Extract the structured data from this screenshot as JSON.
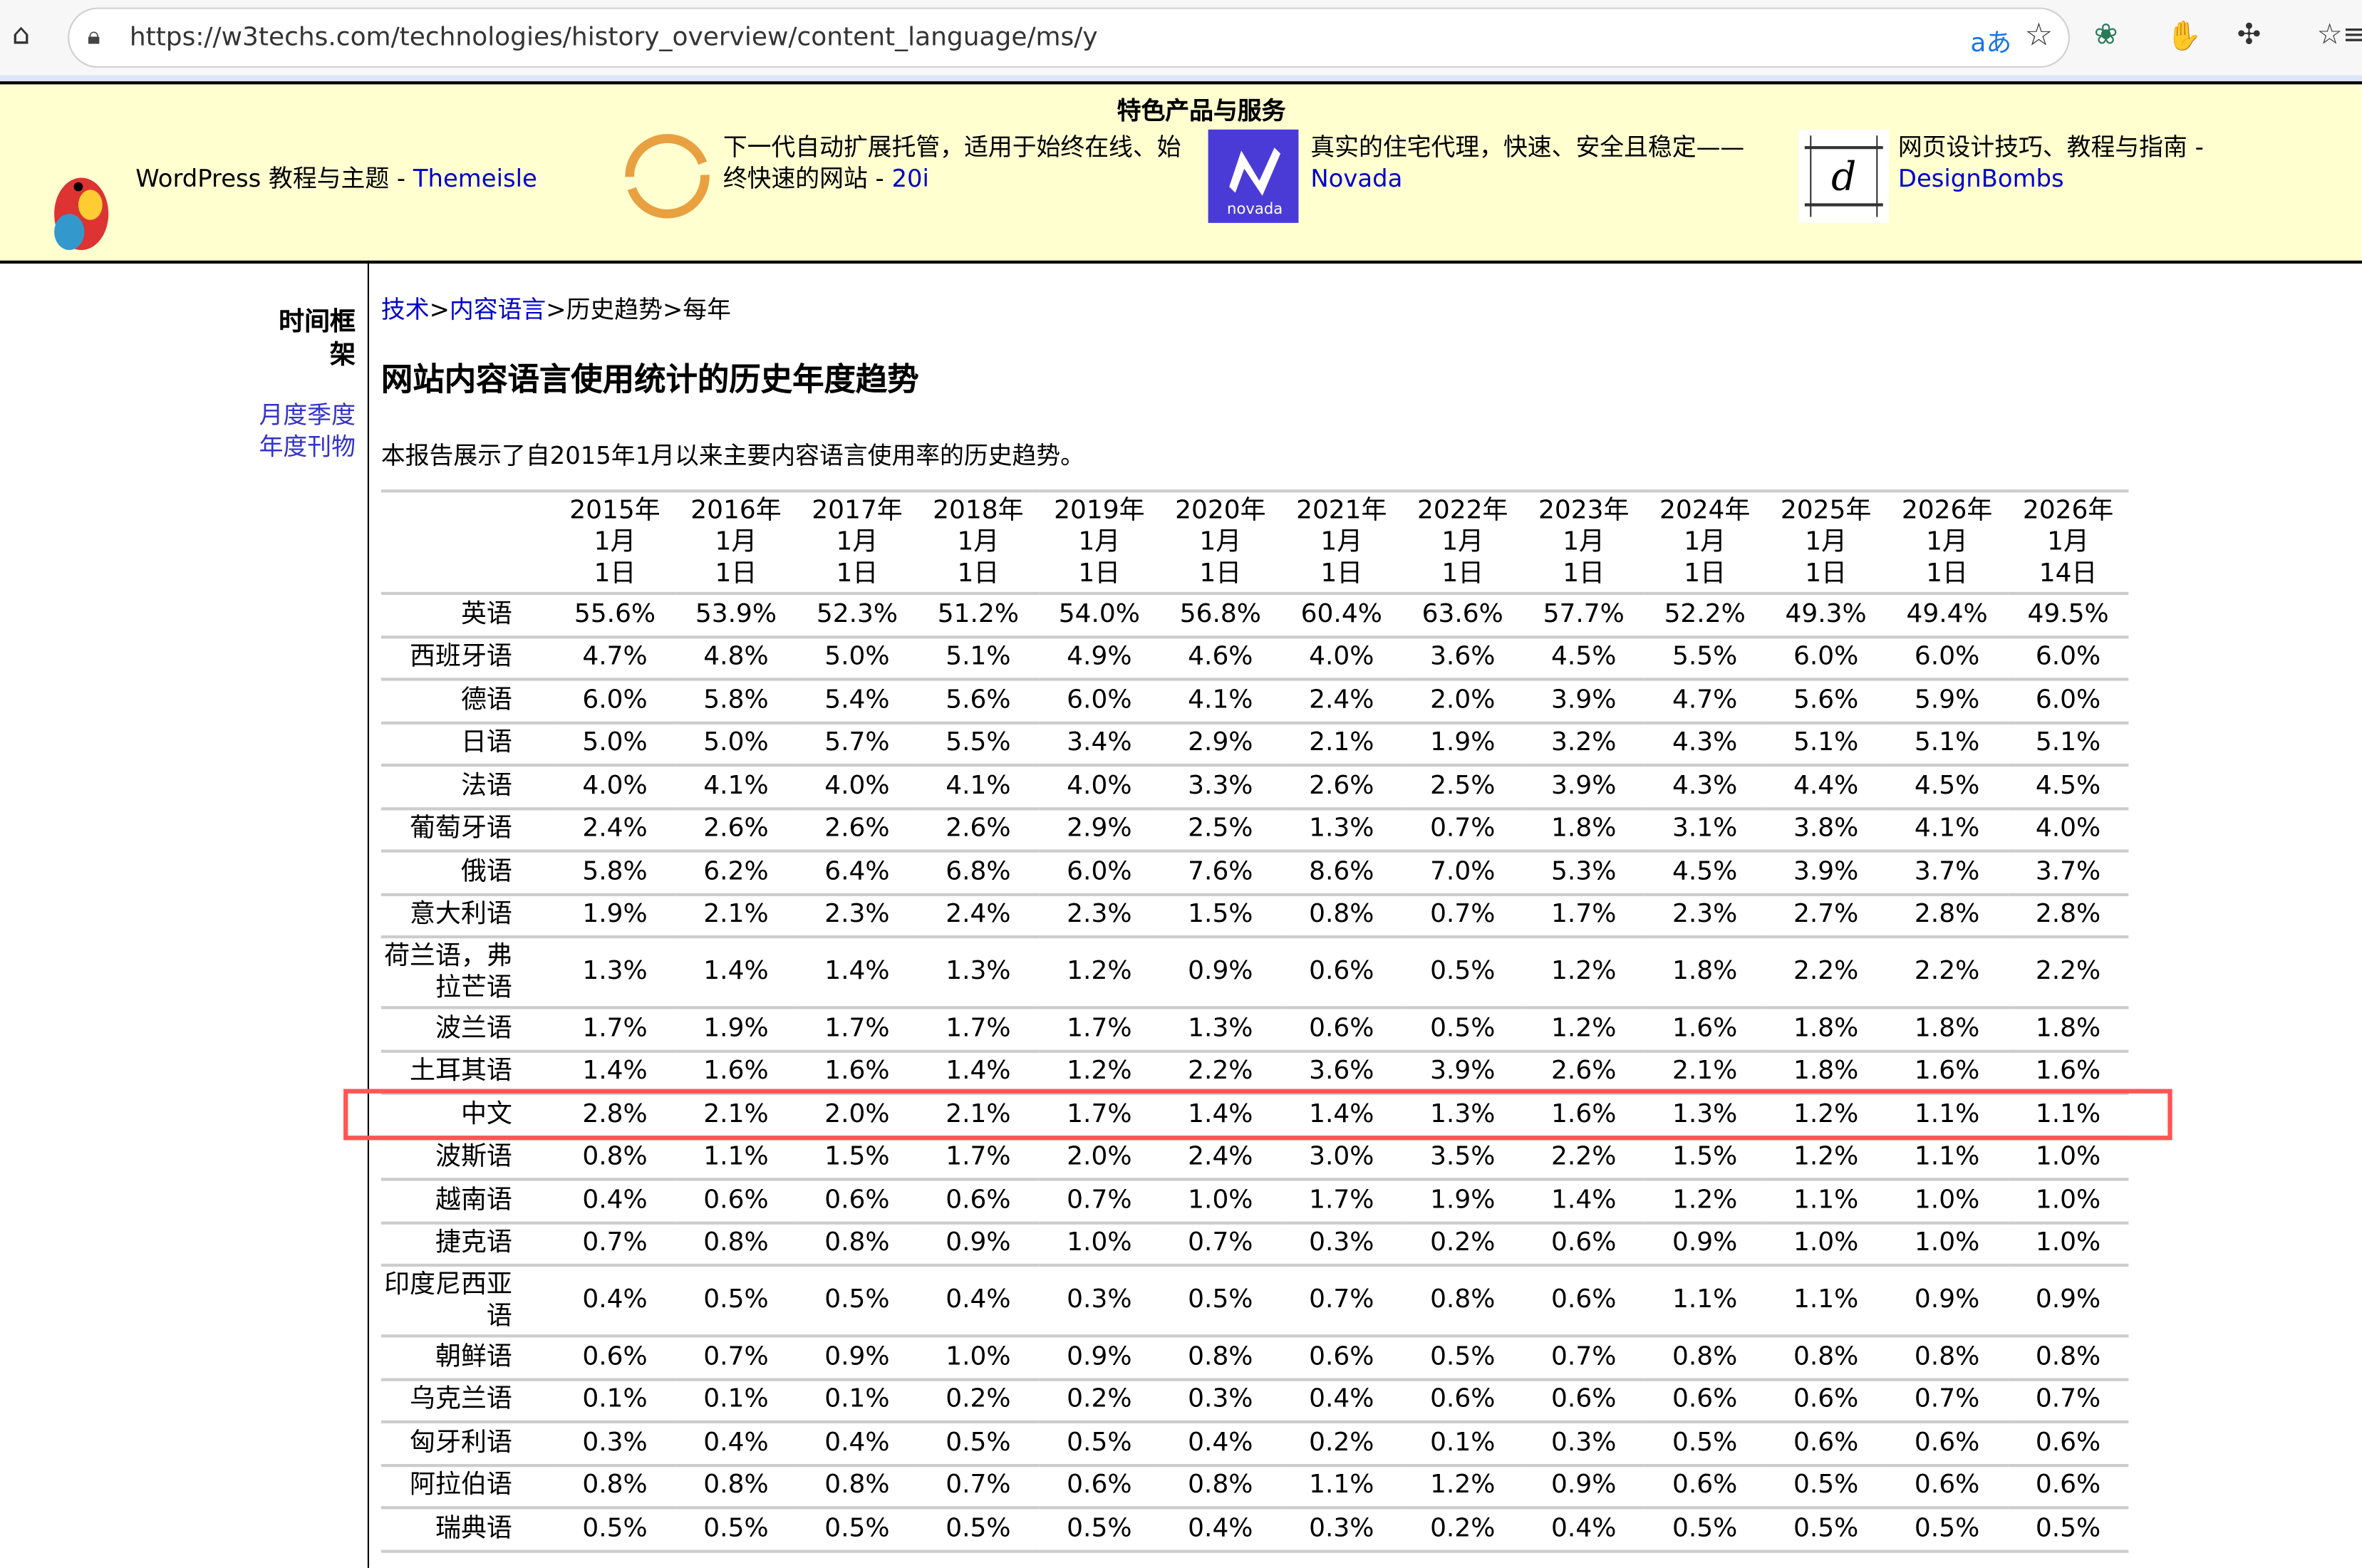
{
  "browser": {
    "url": "https://w3techs.com/technologies/history_overview/content_language/ms/y"
  },
  "ads": {
    "title": "特色产品与服务",
    "items": [
      {
        "text": "WordPress 教程与主题 - ",
        "link": "Themeisle"
      },
      {
        "text": "下一代自动扩展托管，适用于始终在线、始终快速的网站 - ",
        "link": "20i"
      },
      {
        "text": "真实的住宅代理，快速、安全且稳定——",
        "link": "Novada",
        "logo_text": "novada"
      },
      {
        "text": "网页设计技巧、教程与指南 - ",
        "link": "DesignBombs"
      }
    ]
  },
  "sidebar": {
    "title": "时间框架",
    "links": [
      "月度",
      "季度",
      "年度",
      "刊物"
    ]
  },
  "breadcrumb": {
    "items": [
      "技术",
      "内容语言",
      "历史趋势",
      "每年"
    ],
    "sep": ">"
  },
  "page": {
    "title": "网站内容语言使用统计的历史年度趋势",
    "intro": "本报告展示了自2015年1月以来主要内容语言使用率的历史趋势。"
  },
  "table": {
    "headers": [
      "2015年1月1日",
      "2016年1月1日",
      "2017年1月1日",
      "2018年1月1日",
      "2019年1月1日",
      "2020年1月1日",
      "2021年1月1日",
      "2022年1月1日",
      "2023年1月1日",
      "2024年1月1日",
      "2025年1月1日",
      "2026年1月1日",
      "2026年1月14日"
    ],
    "highlighted_row": "中文",
    "highlight_color": "#ff5555",
    "rows": [
      {
        "label": "英语",
        "values": [
          "55.6%",
          "53.9%",
          "52.3%",
          "51.2%",
          "54.0%",
          "56.8%",
          "60.4%",
          "63.6%",
          "57.7%",
          "52.2%",
          "49.3%",
          "49.4%",
          "49.5%"
        ]
      },
      {
        "label": "西班牙语",
        "values": [
          "4.7%",
          "4.8%",
          "5.0%",
          "5.1%",
          "4.9%",
          "4.6%",
          "4.0%",
          "3.6%",
          "4.5%",
          "5.5%",
          "6.0%",
          "6.0%",
          "6.0%"
        ]
      },
      {
        "label": "德语",
        "values": [
          "6.0%",
          "5.8%",
          "5.4%",
          "5.6%",
          "6.0%",
          "4.1%",
          "2.4%",
          "2.0%",
          "3.9%",
          "4.7%",
          "5.6%",
          "5.9%",
          "6.0%"
        ]
      },
      {
        "label": "日语",
        "values": [
          "5.0%",
          "5.0%",
          "5.7%",
          "5.5%",
          "3.4%",
          "2.9%",
          "2.1%",
          "1.9%",
          "3.2%",
          "4.3%",
          "5.1%",
          "5.1%",
          "5.1%"
        ]
      },
      {
        "label": "法语",
        "values": [
          "4.0%",
          "4.1%",
          "4.0%",
          "4.1%",
          "4.0%",
          "3.3%",
          "2.6%",
          "2.5%",
          "3.9%",
          "4.3%",
          "4.4%",
          "4.5%",
          "4.5%"
        ]
      },
      {
        "label": "葡萄牙语",
        "values": [
          "2.4%",
          "2.6%",
          "2.6%",
          "2.6%",
          "2.9%",
          "2.5%",
          "1.3%",
          "0.7%",
          "1.8%",
          "3.1%",
          "3.8%",
          "4.1%",
          "4.0%"
        ]
      },
      {
        "label": "俄语",
        "values": [
          "5.8%",
          "6.2%",
          "6.4%",
          "6.8%",
          "6.0%",
          "7.6%",
          "8.6%",
          "7.0%",
          "5.3%",
          "4.5%",
          "3.9%",
          "3.7%",
          "3.7%"
        ]
      },
      {
        "label": "意大利语",
        "values": [
          "1.9%",
          "2.1%",
          "2.3%",
          "2.4%",
          "2.3%",
          "1.5%",
          "0.8%",
          "0.7%",
          "1.7%",
          "2.3%",
          "2.7%",
          "2.8%",
          "2.8%"
        ]
      },
      {
        "label": "荷兰语，弗拉芒语",
        "values": [
          "1.3%",
          "1.4%",
          "1.4%",
          "1.3%",
          "1.2%",
          "0.9%",
          "0.6%",
          "0.5%",
          "1.2%",
          "1.8%",
          "2.2%",
          "2.2%",
          "2.2%"
        ]
      },
      {
        "label": "波兰语",
        "values": [
          "1.7%",
          "1.9%",
          "1.7%",
          "1.7%",
          "1.7%",
          "1.3%",
          "0.6%",
          "0.5%",
          "1.2%",
          "1.6%",
          "1.8%",
          "1.8%",
          "1.8%"
        ]
      },
      {
        "label": "土耳其语",
        "values": [
          "1.4%",
          "1.6%",
          "1.6%",
          "1.4%",
          "1.2%",
          "2.2%",
          "3.6%",
          "3.9%",
          "2.6%",
          "2.1%",
          "1.8%",
          "1.6%",
          "1.6%"
        ]
      },
      {
        "label": "中文",
        "values": [
          "2.8%",
          "2.1%",
          "2.0%",
          "2.1%",
          "1.7%",
          "1.4%",
          "1.4%",
          "1.3%",
          "1.6%",
          "1.3%",
          "1.2%",
          "1.1%",
          "1.1%"
        ]
      },
      {
        "label": "波斯语",
        "values": [
          "0.8%",
          "1.1%",
          "1.5%",
          "1.7%",
          "2.0%",
          "2.4%",
          "3.0%",
          "3.5%",
          "2.2%",
          "1.5%",
          "1.2%",
          "1.1%",
          "1.0%"
        ]
      },
      {
        "label": "越南语",
        "values": [
          "0.4%",
          "0.6%",
          "0.6%",
          "0.6%",
          "0.7%",
          "1.0%",
          "1.7%",
          "1.9%",
          "1.4%",
          "1.2%",
          "1.1%",
          "1.0%",
          "1.0%"
        ]
      },
      {
        "label": "捷克语",
        "values": [
          "0.7%",
          "0.8%",
          "0.8%",
          "0.9%",
          "1.0%",
          "0.7%",
          "0.3%",
          "0.2%",
          "0.6%",
          "0.9%",
          "1.0%",
          "1.0%",
          "1.0%"
        ]
      },
      {
        "label": "印度尼西亚语",
        "values": [
          "0.4%",
          "0.5%",
          "0.5%",
          "0.4%",
          "0.3%",
          "0.5%",
          "0.7%",
          "0.8%",
          "0.6%",
          "1.1%",
          "1.1%",
          "0.9%",
          "0.9%"
        ]
      },
      {
        "label": "朝鲜语",
        "values": [
          "0.6%",
          "0.7%",
          "0.9%",
          "1.0%",
          "0.9%",
          "0.8%",
          "0.6%",
          "0.5%",
          "0.7%",
          "0.8%",
          "0.8%",
          "0.8%",
          "0.8%"
        ]
      },
      {
        "label": "乌克兰语",
        "values": [
          "0.1%",
          "0.1%",
          "0.1%",
          "0.2%",
          "0.2%",
          "0.3%",
          "0.4%",
          "0.6%",
          "0.6%",
          "0.6%",
          "0.6%",
          "0.7%",
          "0.7%"
        ]
      },
      {
        "label": "匈牙利语",
        "values": [
          "0.3%",
          "0.4%",
          "0.4%",
          "0.5%",
          "0.5%",
          "0.4%",
          "0.2%",
          "0.1%",
          "0.3%",
          "0.5%",
          "0.6%",
          "0.6%",
          "0.6%"
        ]
      },
      {
        "label": "阿拉伯语",
        "values": [
          "0.8%",
          "0.8%",
          "0.8%",
          "0.7%",
          "0.6%",
          "0.8%",
          "1.1%",
          "1.2%",
          "0.9%",
          "0.6%",
          "0.5%",
          "0.6%",
          "0.6%"
        ]
      },
      {
        "label": "瑞典语",
        "values": [
          "0.5%",
          "0.5%",
          "0.5%",
          "0.5%",
          "0.5%",
          "0.4%",
          "0.3%",
          "0.2%",
          "0.4%",
          "0.5%",
          "0.5%",
          "0.5%",
          "0.5%"
        ]
      }
    ]
  }
}
